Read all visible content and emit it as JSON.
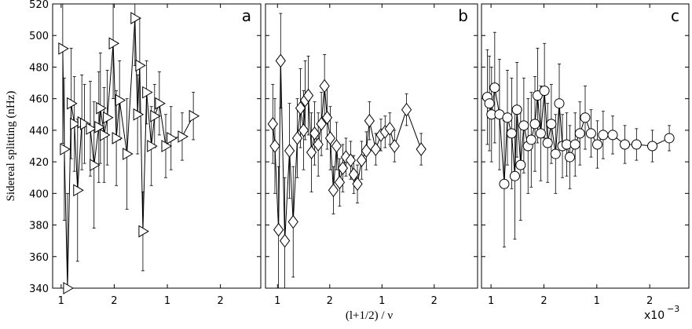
{
  "chart_data": [
    {
      "type": "scatter",
      "panel_label": "a",
      "ylabel": "Sidereal splitting (nHz)",
      "marker": "triangle",
      "xlim": [
        0.84,
        4.76
      ],
      "ylim": [
        340,
        520
      ],
      "xticks": [
        {
          "value": 1,
          "label": "1"
        },
        {
          "value": 2,
          "label": "2"
        },
        {
          "value": 3,
          "label": "1"
        },
        {
          "value": 4,
          "label": "2"
        }
      ],
      "yticks": [
        340,
        360,
        380,
        400,
        420,
        440,
        460,
        480,
        500,
        520
      ],
      "x": [
        1.03,
        1.06,
        1.12,
        1.19,
        1.25,
        1.31,
        1.39,
        1.44,
        1.55,
        1.62,
        1.71,
        1.74,
        1.81,
        1.87,
        1.98,
        2.04,
        2.1,
        2.24,
        2.39,
        2.44,
        2.48,
        2.54,
        2.61,
        2.7,
        2.76,
        2.85,
        2.97,
        3.07,
        3.28,
        3.49
      ],
      "values": [
        491.7,
        428,
        340,
        457,
        444,
        402,
        445,
        444,
        441,
        418,
        442,
        454,
        437,
        448,
        495,
        435,
        459,
        425,
        511,
        450,
        481,
        376,
        464,
        430,
        449,
        457,
        430,
        435,
        436,
        449
      ],
      "errors": [
        60,
        45,
        60,
        35,
        30,
        45,
        30,
        25,
        30,
        40,
        35,
        35,
        30,
        30,
        35,
        30,
        25,
        35,
        30,
        25,
        30,
        25,
        20,
        25,
        20,
        20,
        20,
        20,
        15,
        15
      ]
    },
    {
      "type": "scatter",
      "panel_label": "b",
      "xlabel": "(l+1/2) / ν",
      "marker": "diamond",
      "xlim": [
        0.77,
        4.83
      ],
      "ylim": [
        340,
        520
      ],
      "xticks": [
        {
          "value": 1,
          "label": "1"
        },
        {
          "value": 2,
          "label": "2"
        },
        {
          "value": 3,
          "label": "1"
        },
        {
          "value": 4,
          "label": "2"
        }
      ],
      "yticks": [
        340,
        360,
        380,
        400,
        420,
        440,
        460,
        480,
        500,
        520
      ],
      "x": [
        0.91,
        0.95,
        1.02,
        1.06,
        1.14,
        1.23,
        1.3,
        1.38,
        1.44,
        1.5,
        1.53,
        1.59,
        1.65,
        1.71,
        1.78,
        1.84,
        1.9,
        1.95,
        2.01,
        2.07,
        2.13,
        2.19,
        2.25,
        2.31,
        2.4,
        2.46,
        2.53,
        2.61,
        2.7,
        2.76,
        2.88,
        2.98,
        3.06,
        3.15,
        3.24,
        3.47,
        3.75
      ],
      "values": [
        444,
        430,
        377,
        484,
        370,
        427,
        382,
        435,
        454,
        440,
        459,
        462,
        426,
        438,
        431,
        444,
        468,
        448,
        435,
        402,
        430,
        407,
        416,
        423,
        421,
        412,
        406,
        421,
        427,
        446,
        428,
        437,
        439,
        441,
        430,
        453,
        428
      ],
      "errors": [
        25,
        30,
        40,
        30,
        40,
        30,
        35,
        25,
        25,
        25,
        25,
        25,
        25,
        20,
        20,
        20,
        20,
        20,
        20,
        15,
        15,
        15,
        15,
        12,
        12,
        12,
        12,
        12,
        12,
        12,
        10,
        10,
        10,
        10,
        10,
        10,
        10
      ]
    },
    {
      "type": "scatter",
      "panel_label": "c",
      "marker": "circle",
      "x_multiplier": "x10",
      "x_multiplier_exp": "−3",
      "xlim": [
        0.82,
        4.74
      ],
      "ylim": [
        340,
        520
      ],
      "xticks": [
        {
          "value": 1,
          "label": "1"
        },
        {
          "value": 2,
          "label": "2"
        },
        {
          "value": 3,
          "label": "1"
        },
        {
          "value": 4,
          "label": "2"
        }
      ],
      "yticks": [
        340,
        360,
        380,
        400,
        420,
        440,
        460,
        480,
        500,
        520
      ],
      "x": [
        0.93,
        0.97,
        1.01,
        1.07,
        1.16,
        1.25,
        1.31,
        1.39,
        1.45,
        1.49,
        1.56,
        1.62,
        1.7,
        1.76,
        1.83,
        1.88,
        1.94,
        2.01,
        2.07,
        2.14,
        2.22,
        2.29,
        2.35,
        2.43,
        2.49,
        2.59,
        2.68,
        2.78,
        2.89,
        3.01,
        3.12,
        3.3,
        3.53,
        3.75,
        4.05,
        4.37
      ],
      "values": [
        461,
        457,
        450,
        467,
        450,
        406,
        448,
        438,
        411,
        453,
        418,
        443,
        430,
        434,
        444,
        462,
        438,
        465,
        432,
        444,
        425,
        457,
        430,
        431,
        423,
        431,
        438,
        448,
        438,
        431,
        437,
        437,
        431,
        431,
        430,
        435
      ],
      "errors": [
        30,
        30,
        30,
        35,
        35,
        40,
        30,
        35,
        40,
        30,
        35,
        30,
        30,
        30,
        30,
        30,
        30,
        30,
        25,
        25,
        25,
        25,
        20,
        20,
        20,
        20,
        20,
        20,
        15,
        15,
        15,
        12,
        12,
        10,
        10,
        8
      ]
    }
  ]
}
